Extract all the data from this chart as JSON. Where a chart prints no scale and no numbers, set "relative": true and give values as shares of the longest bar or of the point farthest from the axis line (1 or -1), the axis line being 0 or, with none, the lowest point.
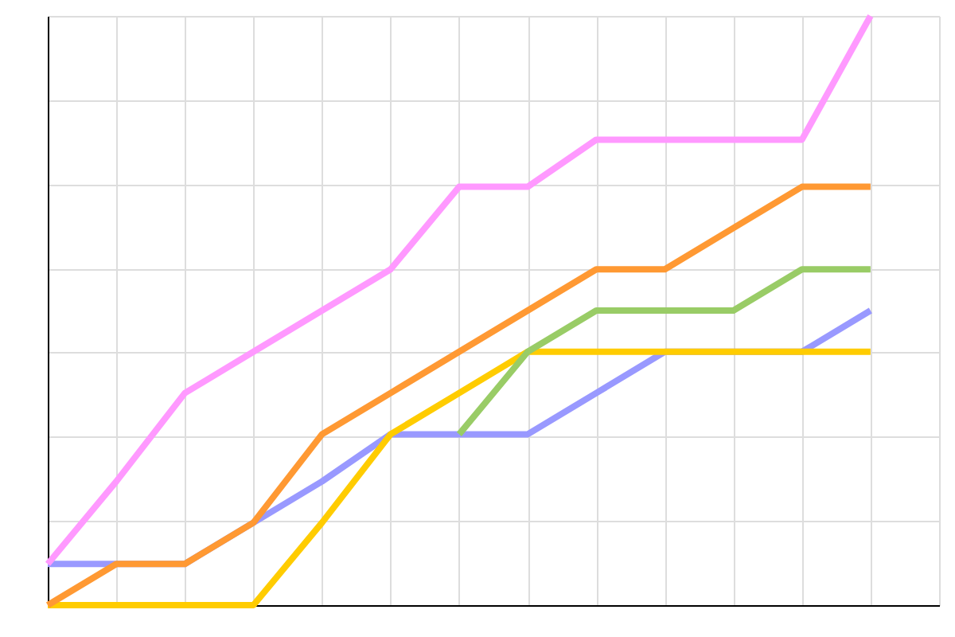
{
  "chart_data": {
    "type": "line",
    "relative": true,
    "grid": true,
    "marker": "none",
    "line_style": "solid",
    "categories": [
      null,
      null,
      null,
      null,
      null,
      null,
      null,
      null,
      null,
      null,
      null,
      null,
      null
    ],
    "series": [
      {
        "color": "#9999ff",
        "values": [
          0.07,
          0.07,
          0.07,
          0.14,
          0.21,
          0.29,
          0.29,
          0.29,
          0.36,
          0.43,
          0.43,
          0.43,
          0.5
        ]
      },
      {
        "color": "#ffcc00",
        "values": [
          0,
          0,
          0,
          0,
          0.14,
          0.29,
          0.36,
          0.43,
          0.43,
          0.43,
          0.43,
          0.43,
          0.43
        ]
      },
      {
        "color": "#99cc66",
        "values": [
          null,
          null,
          null,
          null,
          null,
          null,
          0.29,
          0.43,
          0.5,
          0.5,
          0.5,
          0.57,
          0.57
        ]
      },
      {
        "color": "#ff9933",
        "values": [
          0,
          0.07,
          0.07,
          0.14,
          0.29,
          0.36,
          0.43,
          0.5,
          0.57,
          0.57,
          0.64,
          0.71,
          0.71
        ]
      },
      {
        "color": "#ff99ff",
        "values": [
          0.07,
          0.21,
          0.36,
          0.43,
          0.5,
          0.57,
          0.71,
          0.71,
          0.79,
          0.79,
          0.79,
          0.79,
          1
        ]
      }
    ]
  }
}
